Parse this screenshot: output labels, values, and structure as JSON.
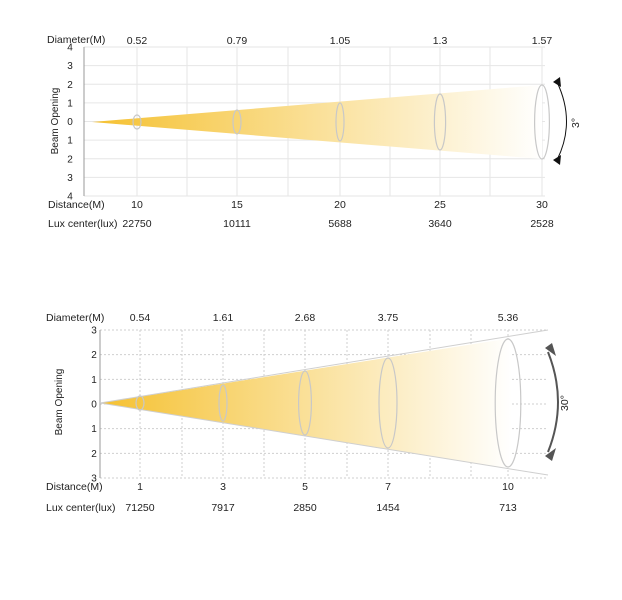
{
  "chart_data": [
    {
      "type": "beam-angle-diagram",
      "beam_angle": "3°",
      "labels": {
        "diameter": "Diameter(M)",
        "beam_opening": "Beam Opening",
        "distance": "Distance(M)",
        "lux": "Lux center(lux)"
      },
      "y_ticks": [
        "4",
        "3",
        "2",
        "1",
        "0",
        "1",
        "2",
        "3",
        "4"
      ],
      "points": [
        {
          "distance": "10",
          "diameter": "0.52",
          "lux": "22750"
        },
        {
          "distance": "15",
          "diameter": "0.79",
          "lux": "10111"
        },
        {
          "distance": "20",
          "diameter": "1.05",
          "lux": "5688"
        },
        {
          "distance": "25",
          "diameter": "1.3",
          "lux": "3640"
        },
        {
          "distance": "30",
          "diameter": "1.57",
          "lux": "2528"
        }
      ],
      "colors": {
        "beam_start": "#f5c131",
        "beam_end": "#ffffff",
        "grid": "#e6e6e6",
        "outline": "#c8c8c8",
        "arrow": "#111111"
      }
    },
    {
      "type": "beam-angle-diagram",
      "beam_angle": "30°",
      "labels": {
        "diameter": "Diameter(M)",
        "beam_opening": "Beam Opening",
        "distance": "Distance(M)",
        "lux": "Lux center(lux)"
      },
      "y_ticks": [
        "3",
        "2",
        "1",
        "0",
        "1",
        "2",
        "3"
      ],
      "points": [
        {
          "distance": "1",
          "diameter": "0.54",
          "lux": "71250"
        },
        {
          "distance": "3",
          "diameter": "1.61",
          "lux": "7917"
        },
        {
          "distance": "5",
          "diameter": "2.68",
          "lux": "2850"
        },
        {
          "distance": "7",
          "diameter": "3.75",
          "lux": "1454"
        },
        {
          "distance": "10",
          "diameter": "5.36",
          "lux": "713"
        }
      ],
      "colors": {
        "beam_start": "#f5c131",
        "beam_end": "#ffffff",
        "grid": "#cfcfcf",
        "outline": "#c8c8c8",
        "arrow": "#555555"
      }
    }
  ]
}
